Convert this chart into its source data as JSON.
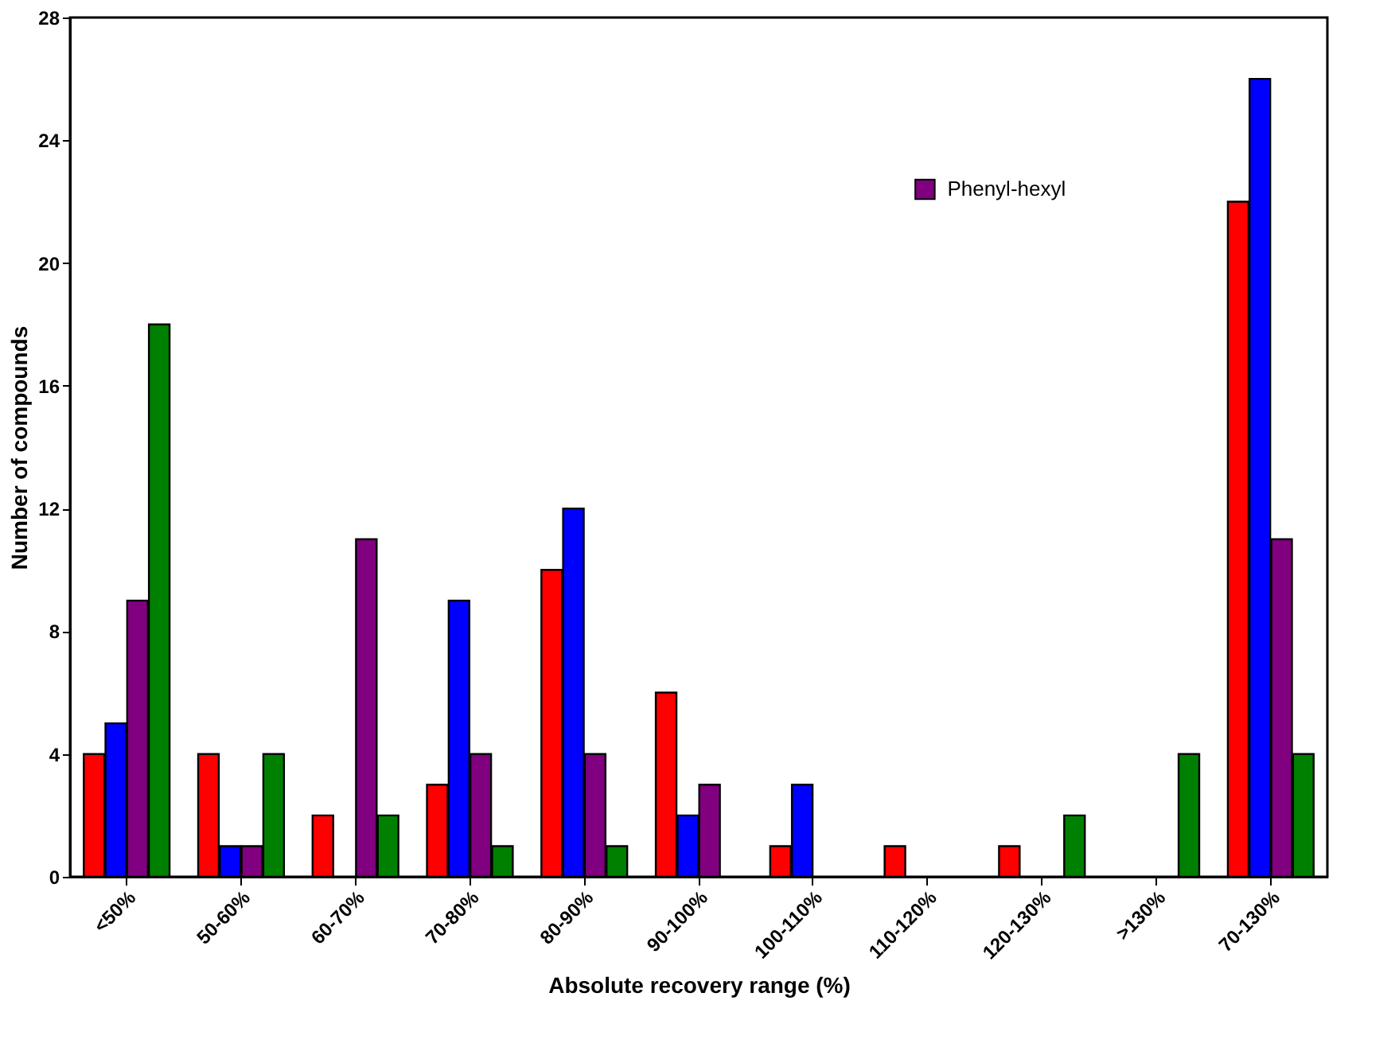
{
  "chart_data": {
    "type": "bar",
    "xlabel": "Absolute recovery range (%)",
    "ylabel": "Number of compounds",
    "categories": [
      "<50%",
      "50-60%",
      "60-70%",
      "70-80%",
      "80-90%",
      "90-100%",
      "100-110%",
      "110-120%",
      "120-130%",
      ">130%",
      "70-130%"
    ],
    "series": [
      {
        "color": "#ff0000",
        "values": [
          4,
          4,
          2,
          3,
          10,
          6,
          1,
          1,
          1,
          0,
          22
        ]
      },
      {
        "color": "#0000ff",
        "values": [
          5,
          1,
          0,
          9,
          12,
          2,
          3,
          0,
          0,
          0,
          26
        ]
      },
      {
        "name": "Phenyl-hexyl",
        "color": "#800080",
        "values": [
          9,
          1,
          11,
          4,
          4,
          3,
          0,
          0,
          0,
          0,
          11
        ]
      },
      {
        "color": "#008000",
        "values": [
          18,
          4,
          2,
          1,
          1,
          0,
          0,
          0,
          2,
          4,
          4
        ]
      }
    ],
    "ylim": [
      0,
      28
    ],
    "yticks": [
      0,
      4,
      8,
      12,
      16,
      20,
      24,
      28
    ],
    "grid": false,
    "legend": "top right"
  }
}
